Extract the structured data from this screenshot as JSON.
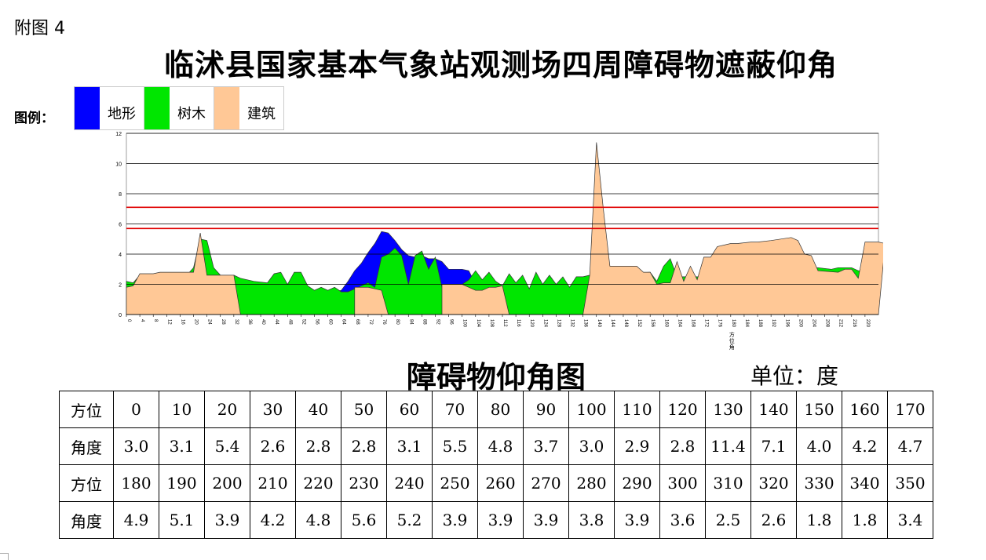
{
  "figure_label": "附图 4",
  "title": "临沭县国家基本气象站观测场四周障碍物遮蔽仰角",
  "legend": {
    "title": "图例：",
    "items": [
      {
        "label": "地形",
        "color": "#0000ff"
      },
      {
        "label": "树木",
        "color": "#00e600"
      },
      {
        "label": "建筑",
        "color": "#ffc896"
      }
    ]
  },
  "subtitle": "障碍物仰角图",
  "unit": "单位：度",
  "chart_data": {
    "type": "area",
    "xlabel": "方位角",
    "ylim": [
      0,
      12
    ],
    "yticks": [
      0,
      2,
      4,
      6,
      8,
      10,
      12
    ],
    "xlim": [
      0,
      224
    ],
    "xticks": [
      0,
      4,
      8,
      12,
      16,
      20,
      24,
      28,
      32,
      36,
      40,
      44,
      48,
      52,
      56,
      60,
      64,
      68,
      72,
      76,
      80,
      84,
      88,
      92,
      96,
      100,
      104,
      108,
      112,
      116,
      120,
      124,
      128,
      132,
      136,
      140,
      144,
      148,
      152,
      156,
      160,
      164,
      168,
      172,
      176,
      180,
      184,
      188,
      192,
      196,
      200,
      204,
      208,
      212,
      216,
      220
    ],
    "grid": true,
    "reference_lines": [
      {
        "y": 7.1,
        "color": "#e00000"
      },
      {
        "y": 5.7,
        "color": "#e00000"
      }
    ],
    "series": [
      {
        "name": "地形",
        "color": "#0000ff",
        "points": [
          [
            0,
            0
          ],
          [
            62,
            1.5
          ],
          [
            64,
            1.6
          ],
          [
            66,
            2.2
          ],
          [
            68,
            2.9
          ],
          [
            70,
            3.4
          ],
          [
            72,
            4.1
          ],
          [
            74,
            4.7
          ],
          [
            76,
            5.5
          ],
          [
            78,
            5.4
          ],
          [
            80,
            4.9
          ],
          [
            82,
            4.3
          ],
          [
            84,
            3.9
          ],
          [
            86,
            3.8
          ],
          [
            88,
            3.9
          ],
          [
            90,
            3.7
          ],
          [
            92,
            3.7
          ],
          [
            94,
            3.5
          ],
          [
            96,
            3.0
          ],
          [
            98,
            3.0
          ],
          [
            100,
            3.0
          ],
          [
            102,
            2.9
          ],
          [
            104,
            2.0
          ],
          [
            106,
            0
          ]
        ]
      },
      {
        "name": "树木",
        "color": "#00e600",
        "points": [
          [
            0,
            2.2
          ],
          [
            2,
            2.1
          ],
          [
            4,
            2.6
          ],
          [
            18,
            2.6
          ],
          [
            20,
            3.1
          ],
          [
            22,
            5.0
          ],
          [
            24,
            4.9
          ],
          [
            26,
            3.1
          ],
          [
            28,
            2.6
          ],
          [
            32,
            2.6
          ],
          [
            34,
            2.4
          ],
          [
            38,
            2.2
          ],
          [
            42,
            2.1
          ],
          [
            44,
            2.7
          ],
          [
            46,
            2.8
          ],
          [
            48,
            2.0
          ],
          [
            50,
            2.8
          ],
          [
            52,
            2.8
          ],
          [
            54,
            1.9
          ],
          [
            56,
            1.6
          ],
          [
            58,
            1.8
          ],
          [
            60,
            1.6
          ],
          [
            62,
            1.8
          ],
          [
            64,
            1.5
          ],
          [
            66,
            1.5
          ],
          [
            68,
            1.7
          ],
          [
            70,
            1.9
          ],
          [
            72,
            2.1
          ],
          [
            74,
            1.8
          ],
          [
            76,
            3.8
          ],
          [
            78,
            4.0
          ],
          [
            80,
            4.4
          ],
          [
            82,
            3.9
          ],
          [
            84,
            2.0
          ],
          [
            86,
            3.9
          ],
          [
            88,
            4.2
          ],
          [
            90,
            3.0
          ],
          [
            92,
            3.8
          ],
          [
            94,
            1.8
          ],
          [
            96,
            2.0
          ],
          [
            98,
            2.0
          ],
          [
            100,
            2.0
          ],
          [
            102,
            2.3
          ],
          [
            104,
            2.9
          ],
          [
            106,
            2.3
          ],
          [
            108,
            2.8
          ],
          [
            110,
            2.2
          ],
          [
            112,
            1.9
          ],
          [
            114,
            2.7
          ],
          [
            116,
            2.1
          ],
          [
            118,
            2.6
          ],
          [
            120,
            1.7
          ],
          [
            122,
            2.8
          ],
          [
            124,
            2.0
          ],
          [
            126,
            2.6
          ],
          [
            128,
            2.0
          ],
          [
            130,
            2.5
          ],
          [
            132,
            1.8
          ],
          [
            134,
            2.5
          ],
          [
            136,
            2.5
          ],
          [
            138,
            2.6
          ],
          [
            140,
            2.6
          ],
          [
            156,
            2.8
          ],
          [
            158,
            2.2
          ],
          [
            160,
            3.2
          ],
          [
            162,
            3.7
          ],
          [
            164,
            2.5
          ],
          [
            170,
            2.5
          ],
          [
            206,
            3.1
          ],
          [
            210,
            3.0
          ],
          [
            212,
            3.1
          ],
          [
            216,
            3.1
          ],
          [
            218,
            2.9
          ],
          [
            224,
            2.9
          ]
        ]
      },
      {
        "name": "建筑",
        "color": "#ffc896",
        "points": [
          [
            0,
            1.8
          ],
          [
            2,
            1.9
          ],
          [
            4,
            2.7
          ],
          [
            8,
            2.7
          ],
          [
            10,
            2.8
          ],
          [
            20,
            2.8
          ],
          [
            22,
            5.4
          ],
          [
            24,
            2.6
          ],
          [
            28,
            2.6
          ],
          [
            30,
            2.6
          ],
          [
            32,
            2.6
          ],
          [
            34,
            0
          ],
          [
            68,
            0
          ],
          [
            68,
            1.8
          ],
          [
            72,
            1.8
          ],
          [
            76,
            1.6
          ],
          [
            78,
            0
          ],
          [
            94,
            0
          ],
          [
            94,
            2.0
          ],
          [
            100,
            2.0
          ],
          [
            102,
            1.8
          ],
          [
            104,
            1.6
          ],
          [
            106,
            1.6
          ],
          [
            108,
            1.8
          ],
          [
            110,
            1.8
          ],
          [
            112,
            1.9
          ],
          [
            114,
            0
          ],
          [
            136,
            0
          ],
          [
            138,
            2.6
          ],
          [
            140,
            11.4
          ],
          [
            142,
            7.1
          ],
          [
            144,
            3.2
          ],
          [
            152,
            3.2
          ],
          [
            154,
            2.8
          ],
          [
            156,
            2.8
          ],
          [
            158,
            2.0
          ],
          [
            160,
            2.1
          ],
          [
            162,
            2.1
          ],
          [
            164,
            3.5
          ],
          [
            166,
            2.2
          ],
          [
            168,
            3.2
          ],
          [
            170,
            2.3
          ],
          [
            172,
            3.8
          ],
          [
            174,
            3.8
          ],
          [
            176,
            4.5
          ],
          [
            180,
            4.7
          ],
          [
            182,
            4.7
          ],
          [
            186,
            4.8
          ],
          [
            188,
            4.8
          ],
          [
            192,
            4.9
          ],
          [
            198,
            5.1
          ],
          [
            200,
            4.9
          ],
          [
            202,
            4.0
          ],
          [
            204,
            3.9
          ],
          [
            206,
            2.9
          ],
          [
            212,
            2.8
          ],
          [
            214,
            3.0
          ],
          [
            216,
            3.0
          ],
          [
            218,
            2.4
          ],
          [
            220,
            4.8
          ],
          [
            224,
            4.8
          ],
          [
            226,
            4.7
          ]
        ]
      }
    ]
  },
  "table": {
    "header_az": "方位",
    "header_angle": "角度",
    "rows": [
      {
        "az": [
          "0",
          "10",
          "20",
          "30",
          "40",
          "50",
          "60",
          "70",
          "80",
          "90",
          "100",
          "110",
          "120",
          "130",
          "140",
          "150",
          "160",
          "170"
        ],
        "angle": [
          "3.0",
          "3.1",
          "5.4",
          "2.6",
          "2.8",
          "2.8",
          "3.1",
          "5.5",
          "4.8",
          "3.7",
          "3.0",
          "2.9",
          "2.8",
          "11.4",
          "7.1",
          "4.0",
          "4.2",
          "4.7"
        ]
      },
      {
        "az": [
          "180",
          "190",
          "200",
          "210",
          "220",
          "230",
          "240",
          "250",
          "260",
          "270",
          "280",
          "290",
          "300",
          "310",
          "320",
          "330",
          "340",
          "350"
        ],
        "angle": [
          "4.9",
          "5.1",
          "3.9",
          "4.2",
          "4.8",
          "5.6",
          "5.2",
          "3.9",
          "3.9",
          "3.9",
          "3.8",
          "3.9",
          "3.6",
          "2.5",
          "2.6",
          "1.8",
          "1.8",
          "3.4"
        ]
      }
    ]
  }
}
